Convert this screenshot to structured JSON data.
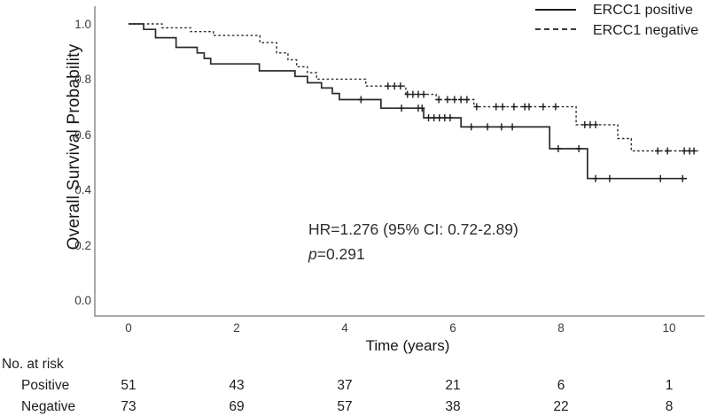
{
  "chart_data": {
    "type": "line",
    "subtype": "kaplan-meier-step",
    "title": "",
    "xlabel": "Time (years)",
    "ylabel": "Overall Survival Probability",
    "x_ticks": [
      "0",
      "2",
      "4",
      "6",
      "8",
      "10"
    ],
    "y_ticks": [
      "1.0",
      "0.8",
      "0.6",
      "0.4",
      "0.2",
      "0.0"
    ],
    "xlim": [
      -0.62,
      10.7
    ],
    "ylim": [
      0.0,
      1.05
    ],
    "grid": false,
    "legend_position": "top-right",
    "axis_color": "#8c8c8c",
    "line_color": "#2b2b2b",
    "annotation": {
      "line1": "HR=1.276 (95% CI: 0.72-2.89)",
      "line2": "p=0.291"
    },
    "series": [
      {
        "name": "ERCC1 positive",
        "style": "solid",
        "points": [
          [
            0,
            1.0
          ],
          [
            0.28,
            0.98
          ],
          [
            0.5,
            0.95
          ],
          [
            0.88,
            0.915
          ],
          [
            1.27,
            0.895
          ],
          [
            1.4,
            0.875
          ],
          [
            1.52,
            0.855
          ],
          [
            2.42,
            0.83
          ],
          [
            3.08,
            0.81
          ],
          [
            3.31,
            0.787
          ],
          [
            3.57,
            0.768
          ],
          [
            3.77,
            0.748
          ],
          [
            3.9,
            0.726
          ],
          [
            4.67,
            0.695
          ],
          [
            5.46,
            0.66
          ],
          [
            6.15,
            0.627
          ],
          [
            7.79,
            0.548
          ],
          [
            8.49,
            0.44
          ],
          [
            10.33,
            0.44
          ]
        ],
        "censor_marks": [
          [
            4.3,
            0.726
          ],
          [
            5.05,
            0.695
          ],
          [
            5.36,
            0.695
          ],
          [
            5.43,
            0.695
          ],
          [
            5.55,
            0.66
          ],
          [
            5.65,
            0.66
          ],
          [
            5.75,
            0.66
          ],
          [
            5.85,
            0.66
          ],
          [
            5.95,
            0.66
          ],
          [
            6.34,
            0.627
          ],
          [
            6.64,
            0.627
          ],
          [
            6.9,
            0.627
          ],
          [
            7.1,
            0.627
          ],
          [
            7.95,
            0.548
          ],
          [
            8.33,
            0.548
          ],
          [
            8.64,
            0.44
          ],
          [
            8.9,
            0.44
          ],
          [
            9.84,
            0.44
          ],
          [
            10.25,
            0.44
          ]
        ]
      },
      {
        "name": "ERCC1 negative",
        "style": "dashed",
        "points": [
          [
            0,
            1.0
          ],
          [
            0.62,
            0.986
          ],
          [
            1.15,
            0.972
          ],
          [
            1.57,
            0.958
          ],
          [
            2.43,
            0.932
          ],
          [
            2.74,
            0.895
          ],
          [
            2.95,
            0.87
          ],
          [
            3.11,
            0.845
          ],
          [
            3.31,
            0.823
          ],
          [
            3.48,
            0.8
          ],
          [
            4.39,
            0.775
          ],
          [
            5.13,
            0.745
          ],
          [
            5.69,
            0.726
          ],
          [
            6.39,
            0.7
          ],
          [
            8.28,
            0.635
          ],
          [
            9.05,
            0.585
          ],
          [
            9.3,
            0.54
          ],
          [
            10.54,
            0.54
          ]
        ],
        "censor_marks": [
          [
            4.8,
            0.775
          ],
          [
            4.92,
            0.775
          ],
          [
            5.03,
            0.775
          ],
          [
            5.16,
            0.745
          ],
          [
            5.26,
            0.745
          ],
          [
            5.36,
            0.745
          ],
          [
            5.46,
            0.745
          ],
          [
            5.74,
            0.726
          ],
          [
            5.9,
            0.726
          ],
          [
            6.03,
            0.726
          ],
          [
            6.15,
            0.726
          ],
          [
            6.26,
            0.726
          ],
          [
            6.44,
            0.7
          ],
          [
            6.8,
            0.7
          ],
          [
            6.92,
            0.7
          ],
          [
            7.13,
            0.7
          ],
          [
            7.33,
            0.7
          ],
          [
            7.41,
            0.7
          ],
          [
            7.67,
            0.7
          ],
          [
            7.9,
            0.7
          ],
          [
            8.44,
            0.635
          ],
          [
            8.54,
            0.635
          ],
          [
            8.64,
            0.635
          ],
          [
            9.79,
            0.54
          ],
          [
            9.97,
            0.54
          ],
          [
            10.28,
            0.54
          ],
          [
            10.38,
            0.54
          ],
          [
            10.46,
            0.54
          ]
        ]
      }
    ]
  },
  "legend": {
    "items": [
      {
        "label": "ERCC1 positive",
        "style": "solid"
      },
      {
        "label": "ERCC1 negative",
        "style": "dashed"
      }
    ]
  },
  "risk_table": {
    "title": "No. at risk",
    "times": [
      0,
      2,
      4,
      6,
      8,
      10
    ],
    "rows": [
      {
        "label": "Positive",
        "counts": [
          "51",
          "43",
          "37",
          "21",
          "6",
          "1"
        ]
      },
      {
        "label": "Negative",
        "counts": [
          "73",
          "69",
          "57",
          "38",
          "22",
          "8"
        ]
      }
    ]
  }
}
